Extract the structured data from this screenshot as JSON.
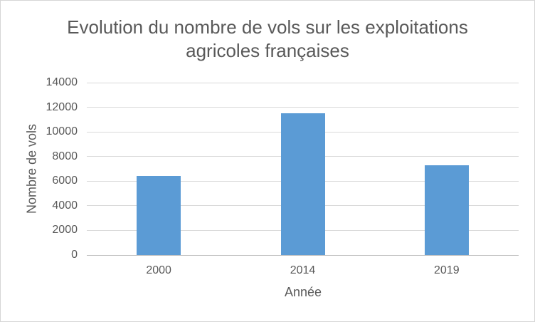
{
  "chart_data": {
    "type": "bar",
    "title": "Evolution du nombre de vols sur les exploitations agricoles françaises",
    "title_lines": [
      "Evolution du nombre de vols sur les exploitations",
      "agricoles françaises"
    ],
    "categories": [
      "2000",
      "2014",
      "2019"
    ],
    "values": [
      6400,
      11500,
      7300
    ],
    "xlabel": "Année",
    "ylabel": "Nombre de vols",
    "ylim": [
      0,
      14000
    ],
    "yticks": [
      0,
      2000,
      4000,
      6000,
      8000,
      10000,
      12000,
      14000
    ],
    "grid": true,
    "legend_position": "none",
    "bar_color": "#5B9BD5",
    "text_color": "#595959",
    "gridline_color": "#D9D9D9",
    "axis_line_color": "#BFBFBF",
    "border_color": "#D6D6D6",
    "background_color": "#FFFFFF"
  }
}
